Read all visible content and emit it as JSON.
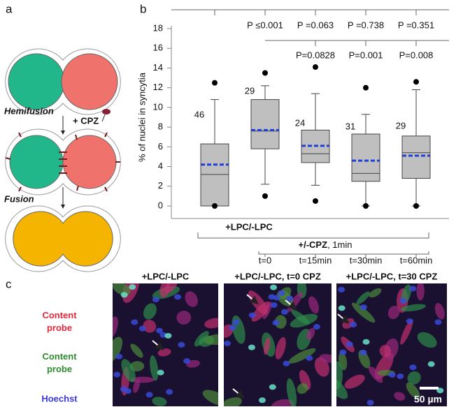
{
  "panel_labels": [
    "a",
    "b",
    "c"
  ],
  "diagram": {
    "hemifusion": "Hemifusion",
    "drug": "+ CPZ",
    "fusion": "Fusion"
  },
  "chart_data": {
    "type": "box",
    "y_label": "% of nuclei in syncytia",
    "categories": [
      null,
      "t=0",
      "t=15min",
      "t=30min",
      "t=60min"
    ],
    "ylim": [
      0,
      18
    ],
    "yticks": [
      0,
      2,
      4,
      6,
      8,
      10,
      12,
      14,
      16,
      18
    ],
    "color": "#bfbfbf",
    "mean_color": "#1f3fd6",
    "n": [
      46,
      29,
      24,
      31,
      29
    ],
    "whisker_low": [
      0,
      2.2,
      2.1,
      0,
      0
    ],
    "q1": [
      0,
      5.8,
      4.4,
      2.5,
      2.8
    ],
    "median": [
      3.2,
      7.6,
      5.3,
      3.3,
      5.4
    ],
    "q3": [
      6.3,
      10.8,
      7.7,
      7.3,
      7.1
    ],
    "whisker_high": [
      10.8,
      12.2,
      11.4,
      9.3,
      11.8
    ],
    "mean": [
      4.2,
      7.7,
      6.1,
      4.6,
      5.1
    ],
    "outliers": [
      [
        12.5,
        0
      ],
      [
        13.5,
        1.0
      ],
      [
        14.1,
        0.5
      ],
      [
        12.0,
        0
      ],
      [
        12.6,
        0
      ]
    ],
    "p_vs_first": [
      "P ≤0.001",
      "P =0.063",
      "P =0.738",
      "P =0.351"
    ],
    "p_vs_second": [
      "P=0.0828",
      "P=0.001",
      "P=0.008"
    ],
    "group_label": "+LPC/-LPC",
    "treatment_label": "+/-CPZ",
    "treatment_detail": ", 1min"
  },
  "images": {
    "titles": [
      "+LPC/-LPC",
      "+LPC/-LPC, t=0 CPZ",
      "+LPC/-LPC, t=30 CPZ"
    ],
    "legend": [
      "Content probe",
      "Content probe",
      "Hoechst"
    ],
    "scale": "50 µm"
  }
}
